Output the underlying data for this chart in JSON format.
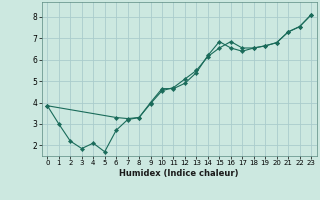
{
  "xlabel": "Humidex (Indice chaleur)",
  "bg_color": "#cce8e0",
  "grid_color": "#aacccc",
  "line_color": "#1a6b5a",
  "marker_color": "#1a6b5a",
  "xlim": [
    -0.5,
    23.5
  ],
  "ylim": [
    1.5,
    8.7
  ],
  "xticks": [
    0,
    1,
    2,
    3,
    4,
    5,
    6,
    7,
    8,
    9,
    10,
    11,
    12,
    13,
    14,
    15,
    16,
    17,
    18,
    19,
    20,
    21,
    22,
    23
  ],
  "yticks": [
    2,
    3,
    4,
    5,
    6,
    7,
    8
  ],
  "line1_x": [
    0,
    1,
    2,
    3,
    4,
    5,
    6,
    7,
    8,
    9,
    10,
    11,
    12,
    13,
    14,
    15,
    16,
    17,
    18,
    19,
    20,
    21,
    22,
    23
  ],
  "line1_y": [
    3.85,
    3.0,
    2.2,
    1.85,
    2.1,
    1.7,
    2.7,
    3.2,
    3.3,
    4.0,
    4.65,
    4.65,
    4.9,
    5.4,
    6.2,
    6.85,
    6.55,
    6.4,
    6.55,
    6.65,
    6.8,
    7.3,
    7.55,
    8.1
  ],
  "line2_x": [
    0,
    6,
    7,
    8,
    9,
    10,
    11,
    12,
    13,
    14,
    15,
    16,
    17,
    18,
    19,
    20,
    21,
    22,
    23
  ],
  "line2_y": [
    3.85,
    3.3,
    3.25,
    3.3,
    3.95,
    4.55,
    4.7,
    5.1,
    5.5,
    6.15,
    6.55,
    6.85,
    6.55,
    6.55,
    6.65,
    6.8,
    7.3,
    7.55,
    8.1
  ]
}
